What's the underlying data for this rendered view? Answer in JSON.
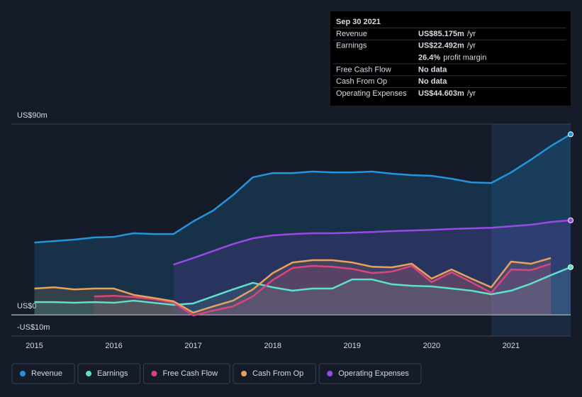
{
  "chart_data": {
    "type": "area-line",
    "xlim": [
      2014.71,
      2021.75
    ],
    "xticks": [
      2015,
      2016,
      2017,
      2018,
      2019,
      2020,
      2021
    ],
    "ylim": [
      -10,
      90
    ],
    "yticks": [
      {
        "value": 90,
        "label": "US$90m"
      },
      {
        "value": 0,
        "label": "US$0"
      },
      {
        "value": -10,
        "label": "-US$10m"
      }
    ],
    "series": [
      {
        "name": "Revenue",
        "color": "#2394df",
        "x": [
          2015,
          2015.25,
          2015.5,
          2015.75,
          2016,
          2016.25,
          2016.5,
          2016.75,
          2017,
          2017.25,
          2017.5,
          2017.75,
          2018,
          2018.25,
          2018.5,
          2018.75,
          2019,
          2019.25,
          2019.5,
          2019.75,
          2020,
          2020.25,
          2020.5,
          2020.75,
          2021,
          2021.25,
          2021.5,
          2021.75
        ],
        "values": [
          34.1,
          34.8,
          35.5,
          36.5,
          36.8,
          38.5,
          38.1,
          38.1,
          44.1,
          49.2,
          56.5,
          64.9,
          66.9,
          66.9,
          67.6,
          67.2,
          67.2,
          67.6,
          66.6,
          65.9,
          65.6,
          64.2,
          62.5,
          62.2,
          67.2,
          73.2,
          79.6,
          85.175
        ]
      },
      {
        "name": "Earnings",
        "color": "#5ee0c9",
        "x": [
          2015,
          2015.25,
          2015.5,
          2015.75,
          2016,
          2016.25,
          2016.5,
          2016.75,
          2017,
          2017.25,
          2017.5,
          2017.75,
          2018,
          2018.25,
          2018.5,
          2018.75,
          2019,
          2019.25,
          2019.5,
          2019.75,
          2020,
          2020.25,
          2020.5,
          2020.75,
          2021,
          2021.25,
          2021.5,
          2021.75
        ],
        "values": [
          6.0,
          6.0,
          5.7,
          6.0,
          5.7,
          6.7,
          5.7,
          4.7,
          5.4,
          8.7,
          12.0,
          15.1,
          13.0,
          11.4,
          12.4,
          12.4,
          16.7,
          16.7,
          14.4,
          13.7,
          13.4,
          12.4,
          11.4,
          9.7,
          11.4,
          14.7,
          18.7,
          22.492
        ]
      },
      {
        "name": "Free Cash Flow",
        "color": "#d9467f",
        "x": [
          2015.75,
          2016,
          2016.25,
          2016.5,
          2016.75,
          2017,
          2017.25,
          2017.5,
          2017.75,
          2018,
          2018.25,
          2018.5,
          2018.75,
          2019,
          2019.25,
          2019.5,
          2019.75,
          2020,
          2020.25,
          2020.5,
          2020.75,
          2021,
          2021.25,
          2021.5
        ],
        "values": [
          8.7,
          9.0,
          8.4,
          7.4,
          5.7,
          -0.3,
          2.0,
          4.0,
          8.7,
          16.4,
          22.1,
          23.1,
          22.7,
          21.7,
          19.7,
          20.4,
          23.1,
          15.4,
          20.1,
          15.4,
          10.4,
          21.4,
          21.1,
          24.1
        ]
      },
      {
        "name": "Cash From Op",
        "color": "#e8a25b",
        "x": [
          2015,
          2015.25,
          2015.5,
          2015.75,
          2016,
          2016.25,
          2016.5,
          2016.75,
          2017,
          2017.25,
          2017.5,
          2017.75,
          2018,
          2018.25,
          2018.5,
          2018.75,
          2019,
          2019.25,
          2019.5,
          2019.75,
          2020,
          2020.25,
          2020.5,
          2020.75,
          2021,
          2021.25,
          2021.5
        ],
        "values": [
          12.4,
          13.0,
          12.0,
          12.4,
          12.4,
          9.4,
          8.0,
          6.4,
          1.0,
          4.0,
          6.7,
          12.0,
          19.7,
          24.7,
          25.8,
          25.8,
          24.7,
          22.7,
          22.4,
          24.1,
          17.1,
          21.4,
          17.1,
          13.0,
          25.1,
          24.1,
          26.8
        ]
      },
      {
        "name": "Operating Expenses",
        "color": "#9b48e8",
        "x": [
          2016.75,
          2017,
          2017.25,
          2017.5,
          2017.75,
          2018,
          2018.25,
          2018.5,
          2018.75,
          2019,
          2019.25,
          2019.5,
          2019.75,
          2020,
          2020.25,
          2020.5,
          2020.75,
          2021,
          2021.25,
          2021.5,
          2021.75
        ],
        "values": [
          23.7,
          26.8,
          30.1,
          33.4,
          36.1,
          37.5,
          38.1,
          38.5,
          38.5,
          38.8,
          39.1,
          39.5,
          39.8,
          40.1,
          40.5,
          40.8,
          41.1,
          41.8,
          42.5,
          43.8,
          44.603
        ]
      }
    ],
    "tooltip": {
      "date": "Sep 30 2021",
      "rows": [
        {
          "label": "Revenue",
          "value": "US$85.175m",
          "unit": "/yr"
        },
        {
          "label": "Earnings",
          "value": "US$22.492m",
          "unit": "/yr"
        },
        {
          "value": "26.4%",
          "unit": "profit margin"
        },
        {
          "label": "Free Cash Flow",
          "value": "No data"
        },
        {
          "label": "Cash From Op",
          "value": "No data"
        },
        {
          "label": "Operating Expenses",
          "value": "US$44.603m",
          "unit": "/yr"
        }
      ]
    }
  }
}
